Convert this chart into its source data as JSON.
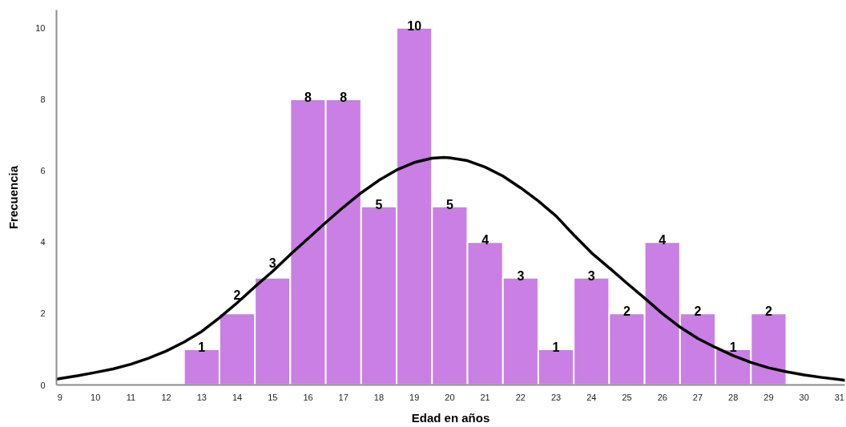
{
  "chart_data": {
    "type": "histogram",
    "xlabel": "Edad en años",
    "ylabel": "Frecuencia",
    "bins": [
      12.5,
      13.5,
      14.5,
      15.5,
      16.5,
      17.5,
      18.5,
      19.5,
      20.5,
      21.5,
      22.5,
      23.5,
      24.5,
      25.5,
      26.5,
      27.5,
      28.5,
      29.5
    ],
    "values": [
      1,
      2,
      3,
      8,
      8,
      5,
      10,
      5,
      4,
      3,
      1,
      3,
      2,
      4,
      2,
      1,
      2
    ],
    "value_labels": [
      "1",
      "2",
      "3",
      "8",
      "8",
      "5",
      "10",
      "5",
      "4",
      "3",
      "1",
      "3",
      "2",
      "4",
      "2",
      "1",
      "2"
    ],
    "color": "#c97fe3",
    "xlim": [
      8.9,
      31.15
    ],
    "ylim": [
      0,
      10.5
    ],
    "xticks": [
      9,
      10,
      11,
      12,
      13,
      14,
      15,
      16,
      17,
      18,
      19,
      20,
      21,
      22,
      23,
      24,
      25,
      26,
      27,
      28,
      29,
      30,
      31
    ],
    "yticks": [
      0,
      2,
      4,
      6,
      8,
      10
    ],
    "series": [
      {
        "type": "line",
        "color": "#000000",
        "x": [
          8.9,
          9,
          9.5,
          10,
          10.5,
          11,
          11.5,
          12,
          12.5,
          13,
          13.5,
          14,
          14.5,
          15,
          15.5,
          16,
          16.5,
          17,
          17.5,
          18,
          18.5,
          19,
          19.5,
          19.83,
          20,
          20.5,
          21,
          21.5,
          22,
          22.5,
          23,
          23.5,
          24,
          24.5,
          25,
          25.5,
          26,
          26.5,
          27,
          27.5,
          28,
          28.5,
          29,
          29.5,
          30,
          30.5,
          31,
          31.15
        ],
        "values": [
          0.16,
          0.18,
          0.26,
          0.35,
          0.45,
          0.58,
          0.75,
          0.95,
          1.2,
          1.5,
          1.88,
          2.3,
          2.75,
          3.18,
          3.65,
          4.1,
          4.55,
          4.98,
          5.38,
          5.73,
          6.02,
          6.23,
          6.35,
          6.37,
          6.36,
          6.28,
          6.1,
          5.85,
          5.52,
          5.15,
          4.73,
          4.2,
          3.7,
          3.28,
          2.85,
          2.43,
          2.0,
          1.62,
          1.3,
          1.05,
          0.82,
          0.63,
          0.48,
          0.37,
          0.28,
          0.21,
          0.15,
          0.13
        ]
      }
    ]
  }
}
